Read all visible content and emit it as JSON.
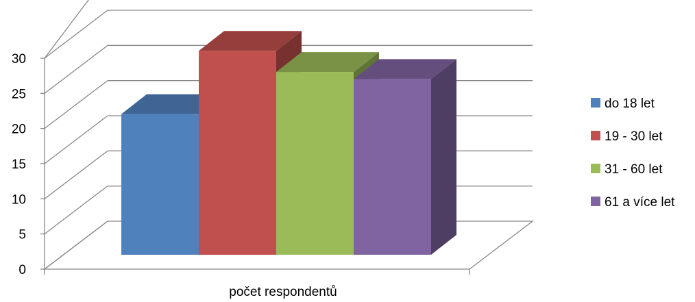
{
  "chart_data": {
    "type": "bar",
    "categories": [
      "počet respondentů"
    ],
    "series": [
      {
        "name": "do 18 let",
        "values": [
          20
        ],
        "color": "#4F81BD"
      },
      {
        "name": "19 - 30 let",
        "values": [
          29
        ],
        "color": "#C0504D"
      },
      {
        "name": "31 - 60  let",
        "values": [
          26
        ],
        "color": "#9BBB59"
      },
      {
        "name": "61 a více let",
        "values": [
          25
        ],
        "color": "#8064A2"
      }
    ],
    "title": "",
    "xlabel": "",
    "ylabel": "",
    "ylim": [
      0,
      30
    ],
    "yticks": [
      0,
      5,
      10,
      15,
      20,
      25,
      30
    ],
    "grid": true,
    "legend": "right",
    "style": "3d-column"
  }
}
